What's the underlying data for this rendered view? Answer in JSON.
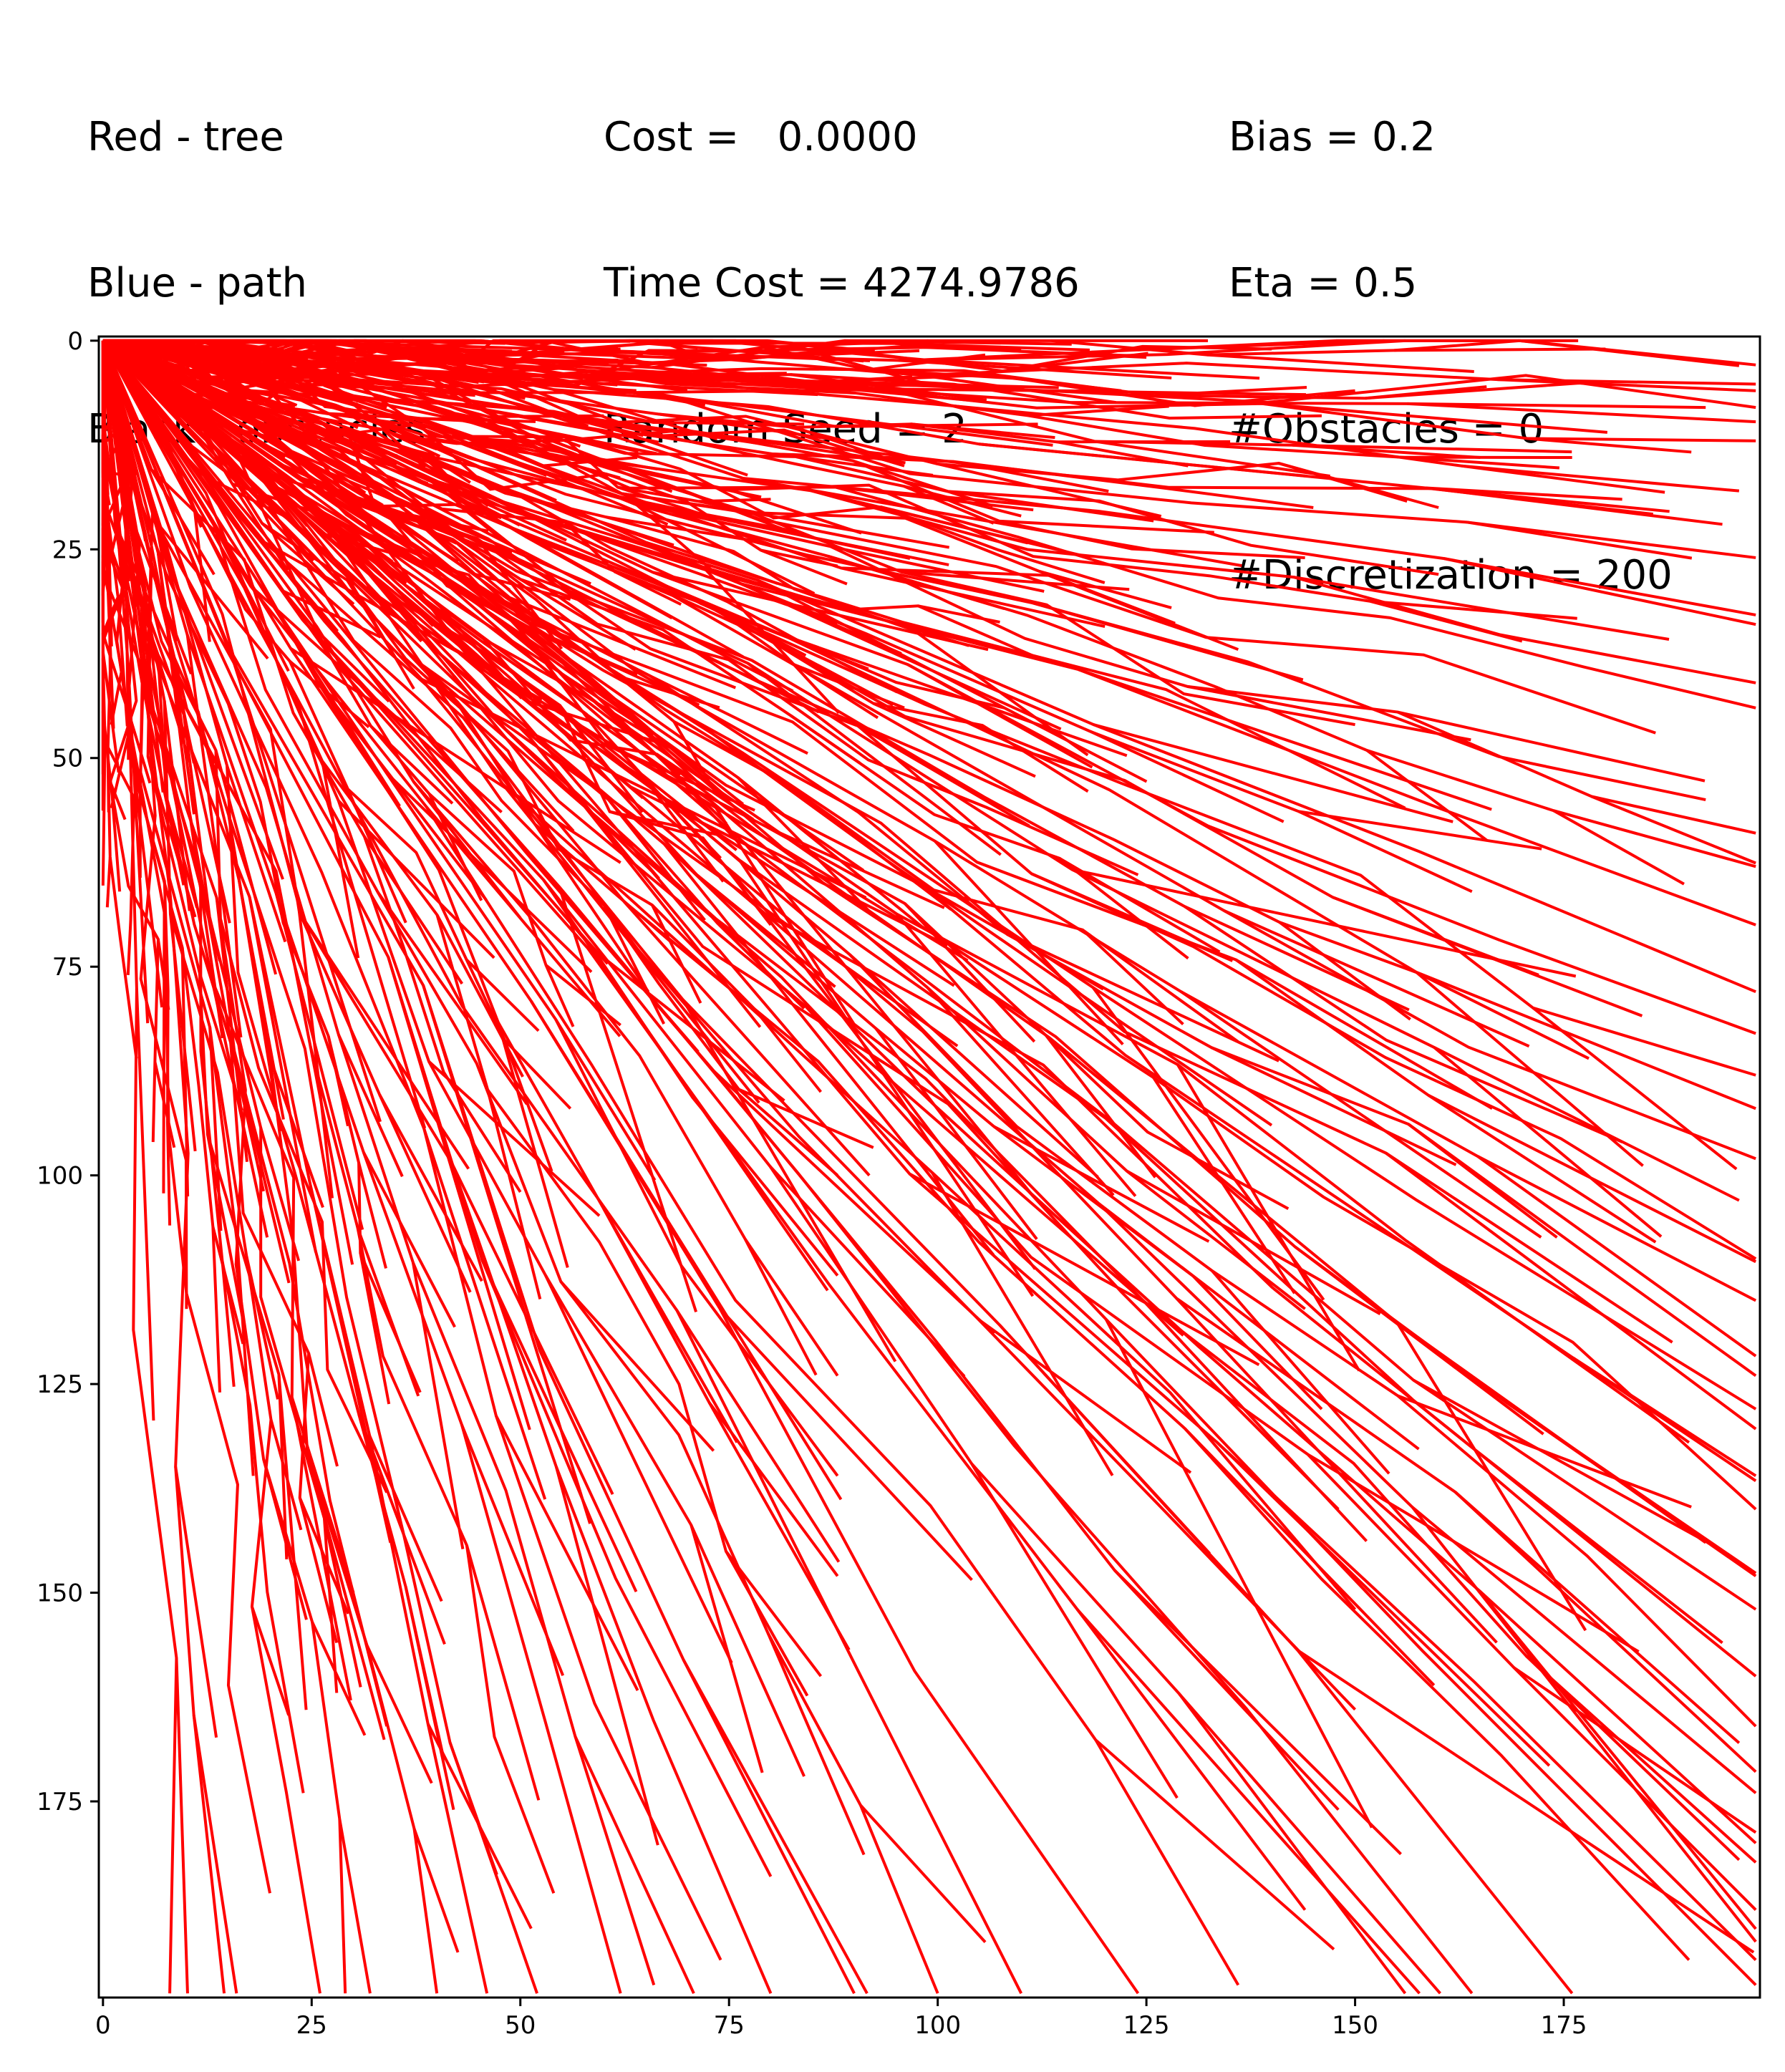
{
  "info": {
    "legend": [
      "Red - tree",
      "Blue - path",
      "Black - obstacles"
    ],
    "stats": [
      "Cost =   0.0000",
      "Time Cost = 4274.9786",
      "Random Seed = 2"
    ],
    "params": [
      "Bias = 0.2",
      "Eta = 0.5",
      "#Obstacles = 0",
      "#Discretization = 200"
    ]
  },
  "colors": {
    "tree": "#ff0000",
    "path": "#0000ff",
    "obstacles": "#000000",
    "axes": "#000000"
  },
  "chart_data": {
    "type": "line",
    "title": "",
    "xlabel": "",
    "ylabel": "",
    "xlim": [
      -0.5,
      198.5
    ],
    "ylim": [
      -0.5,
      198.5
    ],
    "y_inverted": true,
    "grid": false,
    "x_ticks": [
      0,
      25,
      50,
      75,
      100,
      125,
      150,
      175
    ],
    "y_ticks": [
      0,
      25,
      50,
      75,
      100,
      125,
      150,
      175
    ],
    "tree_root": [
      0,
      0
    ],
    "obstacles": [],
    "path": [],
    "tree_branch_endpoints": [
      [
        20,
        2
      ],
      [
        36,
        2
      ],
      [
        52,
        1
      ],
      [
        62,
        1
      ],
      [
        72,
        2
      ],
      [
        88,
        1
      ],
      [
        110,
        1
      ],
      [
        125,
        2
      ],
      [
        140,
        1
      ],
      [
        156,
        0
      ],
      [
        180,
        1
      ],
      [
        196,
        3
      ],
      [
        28,
        4
      ],
      [
        45,
        5
      ],
      [
        70,
        6
      ],
      [
        98,
        5
      ],
      [
        122,
        6
      ],
      [
        150,
        6
      ],
      [
        178,
        5
      ],
      [
        198,
        6
      ],
      [
        34,
        8
      ],
      [
        60,
        9
      ],
      [
        84,
        10
      ],
      [
        112,
        10
      ],
      [
        146,
        9
      ],
      [
        198,
        8
      ],
      [
        40,
        13
      ],
      [
        64,
        14
      ],
      [
        96,
        15
      ],
      [
        130,
        15
      ],
      [
        165,
        14
      ],
      [
        198,
        12
      ],
      [
        44,
        17
      ],
      [
        80,
        19
      ],
      [
        110,
        21
      ],
      [
        145,
        20
      ],
      [
        182,
        19
      ],
      [
        196,
        18
      ],
      [
        48,
        24
      ],
      [
        88,
        27
      ],
      [
        120,
        29
      ],
      [
        160,
        28
      ],
      [
        198,
        26
      ],
      [
        194,
        22
      ],
      [
        56,
        31
      ],
      [
        98,
        35
      ],
      [
        136,
        37
      ],
      [
        170,
        36
      ],
      [
        198,
        34
      ],
      [
        198,
        41
      ],
      [
        64,
        40
      ],
      [
        108,
        44
      ],
      [
        150,
        46
      ],
      [
        186,
        47
      ],
      [
        198,
        44
      ],
      [
        70,
        50
      ],
      [
        118,
        54
      ],
      [
        156,
        56
      ],
      [
        192,
        55
      ],
      [
        198,
        59
      ],
      [
        76,
        60
      ],
      [
        124,
        64
      ],
      [
        164,
        66
      ],
      [
        198,
        63
      ],
      [
        198,
        70
      ],
      [
        80,
        70
      ],
      [
        130,
        74
      ],
      [
        172,
        76
      ],
      [
        198,
        78
      ],
      [
        198,
        83
      ],
      [
        84,
        80
      ],
      [
        136,
        84
      ],
      [
        178,
        86
      ],
      [
        198,
        88
      ],
      [
        198,
        92
      ],
      [
        86,
        90
      ],
      [
        140,
        94
      ],
      [
        182,
        96
      ],
      [
        198,
        98
      ],
      [
        196,
        103
      ],
      [
        88,
        100
      ],
      [
        142,
        104
      ],
      [
        186,
        108
      ],
      [
        198,
        110
      ],
      [
        198,
        115
      ],
      [
        88,
        112
      ],
      [
        144,
        116
      ],
      [
        188,
        120
      ],
      [
        198,
        124
      ],
      [
        198,
        128
      ],
      [
        88,
        124
      ],
      [
        146,
        128
      ],
      [
        190,
        132
      ],
      [
        198,
        136
      ],
      [
        198,
        140
      ],
      [
        88,
        136
      ],
      [
        148,
        140
      ],
      [
        192,
        144
      ],
      [
        198,
        148
      ],
      [
        198,
        152
      ],
      [
        88,
        148
      ],
      [
        150,
        152
      ],
      [
        194,
        156
      ],
      [
        198,
        160
      ],
      [
        198,
        166
      ],
      [
        86,
        160
      ],
      [
        150,
        164
      ],
      [
        196,
        168
      ],
      [
        198,
        174
      ],
      [
        198,
        180
      ],
      [
        84,
        172
      ],
      [
        148,
        176
      ],
      [
        196,
        182
      ],
      [
        198,
        188
      ],
      [
        198,
        194
      ],
      [
        80,
        184
      ],
      [
        144,
        188
      ],
      [
        190,
        194
      ],
      [
        198,
        197
      ],
      [
        176,
        198
      ],
      [
        74,
        194
      ],
      [
        136,
        197
      ],
      [
        164,
        198
      ],
      [
        156,
        198
      ],
      [
        124,
        198
      ],
      [
        66,
        197
      ],
      [
        110,
        198
      ],
      [
        100,
        198
      ],
      [
        90,
        198
      ],
      [
        80,
        198
      ],
      [
        62,
        198
      ],
      [
        52,
        198
      ],
      [
        46,
        198
      ],
      [
        40,
        198
      ],
      [
        32,
        198
      ],
      [
        26,
        198
      ],
      [
        54,
        186
      ],
      [
        42,
        176
      ],
      [
        34,
        166
      ],
      [
        28,
        156
      ],
      [
        22,
        146
      ],
      [
        18,
        136
      ],
      [
        14,
        126
      ],
      [
        10,
        116
      ],
      [
        8,
        106
      ],
      [
        6,
        96
      ],
      [
        4,
        86
      ],
      [
        3,
        76
      ],
      [
        2,
        66
      ],
      [
        1,
        56
      ],
      [
        1,
        46
      ],
      [
        0,
        36
      ],
      [
        0,
        26
      ],
      [
        0,
        16
      ],
      [
        8,
        198
      ],
      [
        16,
        198
      ],
      [
        20,
        186
      ],
      [
        24,
        174
      ],
      [
        28,
        162
      ],
      [
        30,
        150
      ],
      [
        34,
        138
      ],
      [
        38,
        126
      ],
      [
        44,
        114
      ],
      [
        50,
        102
      ],
      [
        56,
        92
      ],
      [
        62,
        82
      ],
      [
        68,
        72
      ],
      [
        74,
        62
      ],
      [
        80,
        52
      ],
      [
        96,
        44
      ],
      [
        112,
        38
      ],
      [
        128,
        32
      ],
      [
        144,
        26
      ],
      [
        160,
        20
      ],
      [
        176,
        14
      ],
      [
        192,
        8
      ]
    ]
  }
}
